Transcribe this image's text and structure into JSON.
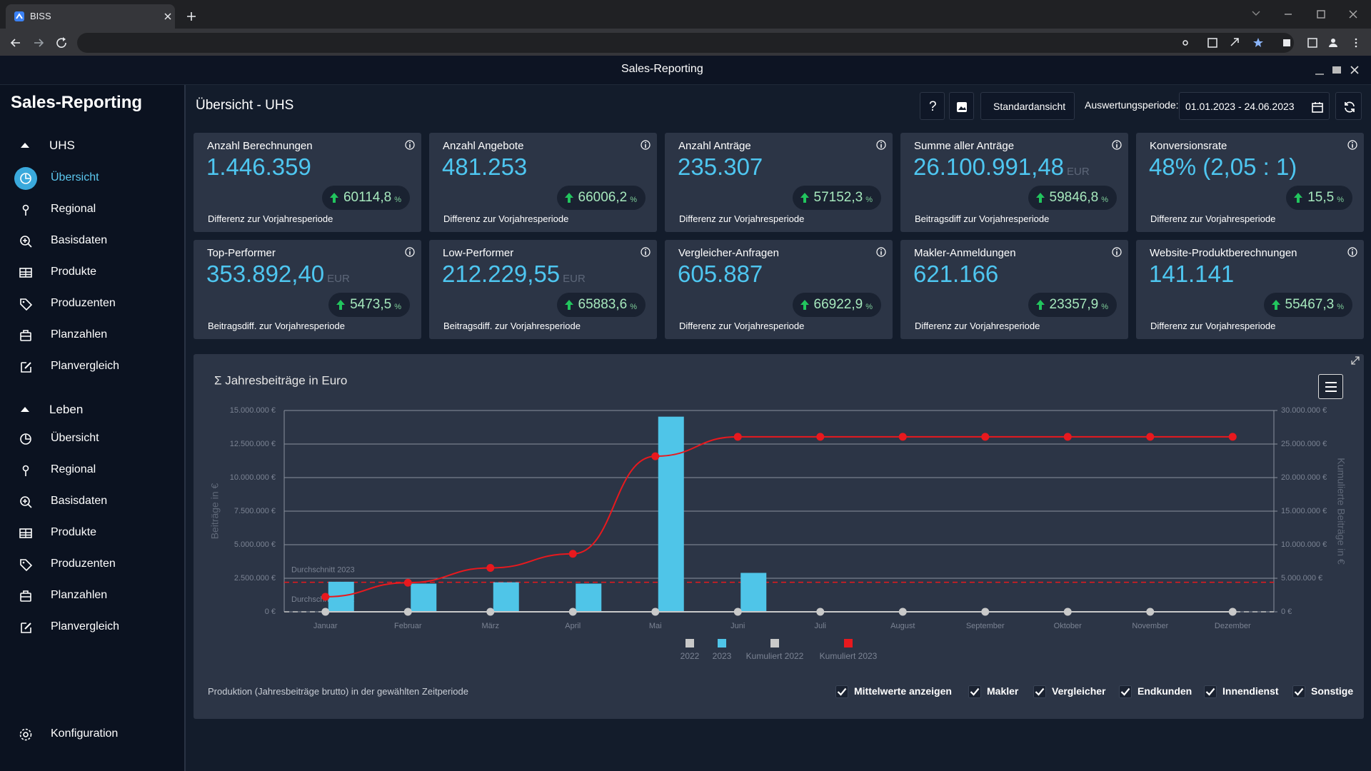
{
  "browser": {
    "tab_title": "BISS"
  },
  "window_title": "Sales-Reporting",
  "sidebar": {
    "title": "Sales-Reporting",
    "groups": [
      {
        "label": "UHS",
        "items": [
          "Übersicht",
          "Regional",
          "Basisdaten",
          "Produkte",
          "Produzenten",
          "Planzahlen",
          "Planvergleich"
        ]
      },
      {
        "label": "Leben",
        "items": [
          "Übersicht",
          "Regional",
          "Basisdaten",
          "Produkte",
          "Produzenten",
          "Planzahlen",
          "Planvergleich"
        ]
      }
    ],
    "footer_item": "Konfiguration"
  },
  "header": {
    "title": "Übersicht - UHS",
    "help_button": "?",
    "view_button": "Standardansicht",
    "period_label": "Auswertungsperiode:",
    "period_value": "01.01.2023 - 24.06.2023"
  },
  "cards": [
    {
      "title": "Anzahl Berechnungen",
      "value": "1.446.359",
      "change": "60114,8",
      "change_unit": "%",
      "caption": "Differenz zur Vorjahresperiode"
    },
    {
      "title": "Anzahl Angebote",
      "value": "481.253",
      "change": "66006,2",
      "change_unit": "%",
      "caption": "Differenz zur Vorjahresperiode"
    },
    {
      "title": "Anzahl Anträge",
      "value": "235.307",
      "change": "57152,3",
      "change_unit": "%",
      "caption": "Differenz zur Vorjahresperiode"
    },
    {
      "title": "Summe aller Anträge",
      "value": "26.100.991,48",
      "unit": "EUR",
      "change": "59846,8",
      "change_unit": "%",
      "caption": "Beitragsdiff zur Vorjahresperiode"
    },
    {
      "title": "Konversionsrate",
      "value": "48% (2,05 : 1)",
      "change": "15,5",
      "change_unit": "%",
      "caption": "Differenz zur Vorjahresperiode"
    },
    {
      "title": "Top-Performer",
      "value": "353.892,40",
      "unit": "EUR",
      "change": "5473,5",
      "change_unit": "%",
      "caption": "Beitragsdiff. zur Vorjahresperiode"
    },
    {
      "title": "Low-Performer",
      "value": "212.229,55",
      "unit": "EUR",
      "change": "65883,6",
      "change_unit": "%",
      "caption": "Beitragsdiff. zur Vorjahresperiode"
    },
    {
      "title": "Vergleicher-Anfragen",
      "value": "605.887",
      "change": "66922,9",
      "change_unit": "%",
      "caption": "Differenz zur Vorjahresperiode"
    },
    {
      "title": "Makler-Anmeldungen",
      "value": "621.166",
      "change": "23357,9",
      "change_unit": "%",
      "caption": "Differenz zur Vorjahresperiode"
    },
    {
      "title": "Website-Produktberechnungen",
      "value": "141.141",
      "change": "55467,3",
      "change_unit": "%",
      "caption": "Differenz zur Vorjahresperiode"
    }
  ],
  "chart_data": {
    "type": "combo",
    "title": "Σ Jahresbeiträge in Euro",
    "y_label": "Beiträge in €",
    "y2_label": "Kumulierte Beiträge in €",
    "categories": [
      "Januar",
      "Februar",
      "März",
      "April",
      "Mai",
      "Juni",
      "Juli",
      "August",
      "September",
      "Oktober",
      "November",
      "Dezember"
    ],
    "series": [
      {
        "name": "2022",
        "type": "bar",
        "color": "#c9c9c9",
        "values": [
          0,
          0,
          0,
          0,
          0,
          0,
          0,
          0,
          0,
          0,
          0,
          0
        ]
      },
      {
        "name": "2023",
        "type": "bar",
        "color": "#4fc5e8",
        "values": [
          2240000,
          2100000,
          2200000,
          2100000,
          14540000,
          2900000,
          null,
          null,
          null,
          null,
          null,
          null
        ]
      },
      {
        "name": "Kumuliert 2022",
        "type": "line",
        "axis": "y2",
        "color": "#c9c9c9",
        "values": [
          0,
          0,
          0,
          0,
          0,
          0,
          0,
          0,
          0,
          0,
          0,
          0
        ]
      },
      {
        "name": "Kumuliert 2023",
        "type": "line",
        "axis": "y2",
        "color": "#e8191e",
        "values": [
          2240000,
          4340000,
          6540000,
          8640000,
          23180000,
          26080000,
          26080000,
          26080000,
          26080000,
          26080000,
          26080000,
          26080000
        ]
      }
    ],
    "reference_lines": [
      {
        "label": "Durchschnitt 2023",
        "value": 2200000,
        "color": "#e8191e"
      },
      {
        "label": "Durchschnitt 2022",
        "value": 0,
        "color": "#c9c9c9"
      }
    ],
    "ylim": [
      0,
      15000000
    ],
    "yticks": [
      {
        "value": 0,
        "label": "0 €"
      },
      {
        "value": 2500000,
        "label": "2.500.000 €"
      },
      {
        "value": 5000000,
        "label": "5.000.000 €"
      },
      {
        "value": 7500000,
        "label": "7.500.000 €"
      },
      {
        "value": 10000000,
        "label": "10.000.000 €"
      },
      {
        "value": 12500000,
        "label": "12.500.000 €"
      },
      {
        "value": 15000000,
        "label": "15.000.000 €"
      }
    ],
    "y2lim": [
      0,
      30000000
    ],
    "y2ticks": [
      {
        "value": 0,
        "label": "0 €"
      },
      {
        "value": 5000000,
        "label": "5.000.000 €"
      },
      {
        "value": 10000000,
        "label": "10.000.000 €"
      },
      {
        "value": 15000000,
        "label": "15.000.000 €"
      },
      {
        "value": 20000000,
        "label": "20.000.000 €"
      },
      {
        "value": 25000000,
        "label": "25.000.000 €"
      },
      {
        "value": 30000000,
        "label": "30.000.000 €"
      }
    ],
    "grid": true
  },
  "chart_panel": {
    "footnote": "Produktion (Jahresbeiträge brutto) in der gewählten Zeitperiode",
    "toggles": [
      "Mittelwerte anzeigen",
      "Makler",
      "Vergleicher",
      "Endkunden",
      "Innendienst",
      "Sonstige"
    ]
  }
}
